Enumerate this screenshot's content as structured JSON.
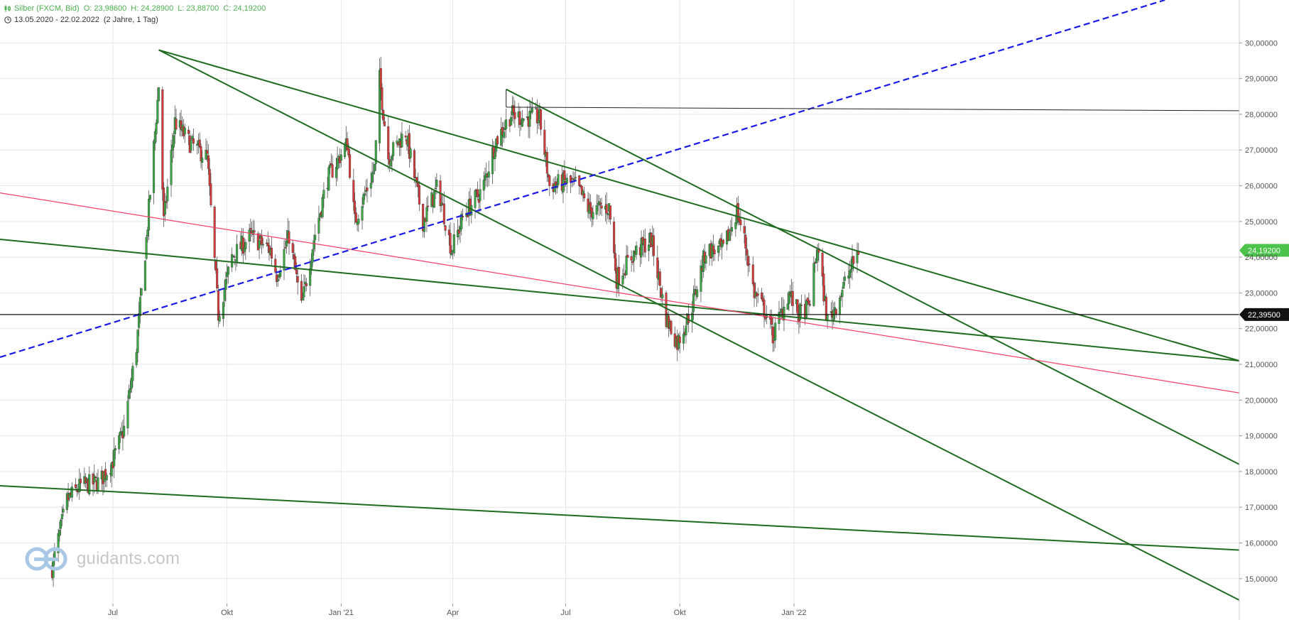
{
  "header": {
    "instrument": "Silber (FXCM, Bid)",
    "open": "O: 23,98600",
    "high": "H: 24,28900",
    "low": "L: 23,88700",
    "close": "C: 24,19200",
    "date_range": "13.05.2020 - 22.02.2022",
    "period": "(2 Jahre, 1 Tag)"
  },
  "watermark": "guidants.com",
  "colors": {
    "up_candle": "#3aa843",
    "down_candle": "#d93b3b",
    "trendline_green": "#1f6b1f",
    "trendline_blue_dashed": "#1a1ae6",
    "trendline_pink": "#f2406a",
    "price_tag_green": "#4cc34a",
    "price_tag_black": "#111111",
    "grid": "#e6e6e6"
  },
  "chart_data": {
    "type": "candlestick",
    "x_tick_labels": [
      "Jul",
      "Okt",
      "Jan '21",
      "Apr",
      "Jul",
      "Okt",
      "Jan '22"
    ],
    "y_tick_labels": [
      "15,00000",
      "16,00000",
      "17,00000",
      "18,00000",
      "19,00000",
      "20,00000",
      "21,00000",
      "22,00000",
      "23,00000",
      "24,00000",
      "25,00000",
      "26,00000",
      "27,00000",
      "28,00000",
      "29,00000",
      "30,00000"
    ],
    "ylim": [
      14.3,
      31.2
    ],
    "grid": true,
    "last_price": {
      "value": 24.192,
      "label": "24,19200"
    },
    "horizontal_level": {
      "value": 22.395,
      "label": "22,39500"
    },
    "ohlc_anchor_points": [
      [
        "2020-05-13",
        15.3
      ],
      [
        "2020-05-25",
        17.2
      ],
      [
        "2020-06-05",
        17.6
      ],
      [
        "2020-06-20",
        17.7
      ],
      [
        "2020-07-01",
        18.3
      ],
      [
        "2020-07-10",
        19.2
      ],
      [
        "2020-07-20",
        21.5
      ],
      [
        "2020-07-28",
        24.5
      ],
      [
        "2020-08-07",
        28.8
      ],
      [
        "2020-08-11",
        25.0
      ],
      [
        "2020-08-20",
        27.8
      ],
      [
        "2020-09-01",
        27.2
      ],
      [
        "2020-09-15",
        26.8
      ],
      [
        "2020-09-24",
        22.4
      ],
      [
        "2020-10-05",
        24.0
      ],
      [
        "2020-10-20",
        24.6
      ],
      [
        "2020-11-05",
        24.2
      ],
      [
        "2020-11-10",
        23.5
      ],
      [
        "2020-11-20",
        24.6
      ],
      [
        "2020-11-30",
        22.6
      ],
      [
        "2020-12-10",
        24.5
      ],
      [
        "2020-12-21",
        26.2
      ],
      [
        "2021-01-06",
        27.2
      ],
      [
        "2021-01-12",
        25.0
      ],
      [
        "2021-01-28",
        26.5
      ],
      [
        "2021-02-01",
        29.0
      ],
      [
        "2021-02-08",
        26.8
      ],
      [
        "2021-02-22",
        27.5
      ],
      [
        "2021-03-08",
        25.0
      ],
      [
        "2021-03-20",
        26.0
      ],
      [
        "2021-03-31",
        24.2
      ],
      [
        "2021-04-10",
        25.2
      ],
      [
        "2021-04-25",
        25.9
      ],
      [
        "2021-05-05",
        27.2
      ],
      [
        "2021-05-18",
        28.0
      ],
      [
        "2021-05-28",
        27.9
      ],
      [
        "2021-06-10",
        27.9
      ],
      [
        "2021-06-18",
        26.0
      ],
      [
        "2021-06-30",
        26.1
      ],
      [
        "2021-07-10",
        26.0
      ],
      [
        "2021-07-20",
        25.3
      ],
      [
        "2021-08-05",
        25.4
      ],
      [
        "2021-08-11",
        23.4
      ],
      [
        "2021-08-25",
        24.1
      ],
      [
        "2021-09-08",
        24.5
      ],
      [
        "2021-09-20",
        22.3
      ],
      [
        "2021-09-29",
        21.6
      ],
      [
        "2021-10-10",
        22.5
      ],
      [
        "2021-10-22",
        24.2
      ],
      [
        "2021-11-05",
        24.2
      ],
      [
        "2021-11-16",
        25.3
      ],
      [
        "2021-11-22",
        24.5
      ],
      [
        "2021-11-30",
        23.0
      ],
      [
        "2021-12-10",
        22.4
      ],
      [
        "2021-12-15",
        21.8
      ],
      [
        "2021-12-28",
        23.0
      ],
      [
        "2022-01-05",
        22.4
      ],
      [
        "2022-01-13",
        22.6
      ],
      [
        "2022-01-20",
        24.3
      ],
      [
        "2022-01-28",
        22.2
      ],
      [
        "2022-02-03",
        22.6
      ],
      [
        "2022-02-15",
        23.6
      ],
      [
        "2022-02-22",
        24.19
      ]
    ],
    "trendlines": [
      {
        "style": "solid-green",
        "from": [
          "2020-08-07",
          29.8
        ],
        "to": [
          "2022-12-26",
          21.1
        ]
      },
      {
        "style": "solid-green",
        "from": [
          "2020-08-07",
          29.8
        ],
        "to": [
          "2022-12-26",
          14.4
        ]
      },
      {
        "style": "solid-green",
        "from": [
          "2021-05-14",
          28.7
        ],
        "to": [
          "2022-12-26",
          18.2
        ]
      },
      {
        "style": "solid-green",
        "from": [
          "2020-04-01",
          17.6
        ],
        "to": [
          "2022-12-26",
          15.8
        ]
      },
      {
        "style": "solid-green",
        "from": [
          "2020-04-01",
          24.5
        ],
        "to": [
          "2022-12-26",
          21.1
        ]
      },
      {
        "style": "solid-pink",
        "from": [
          "2020-04-01",
          25.8
        ],
        "to": [
          "2022-12-26",
          20.2
        ]
      },
      {
        "style": "dashed-blue",
        "from": [
          "2020-04-01",
          21.2
        ],
        "to": [
          "2022-10-27",
          31.2
        ]
      },
      {
        "style": "solid-black-thin",
        "from": [
          "2021-05-14",
          28.2
        ],
        "to": [
          "2022-12-26",
          28.1
        ]
      }
    ]
  }
}
